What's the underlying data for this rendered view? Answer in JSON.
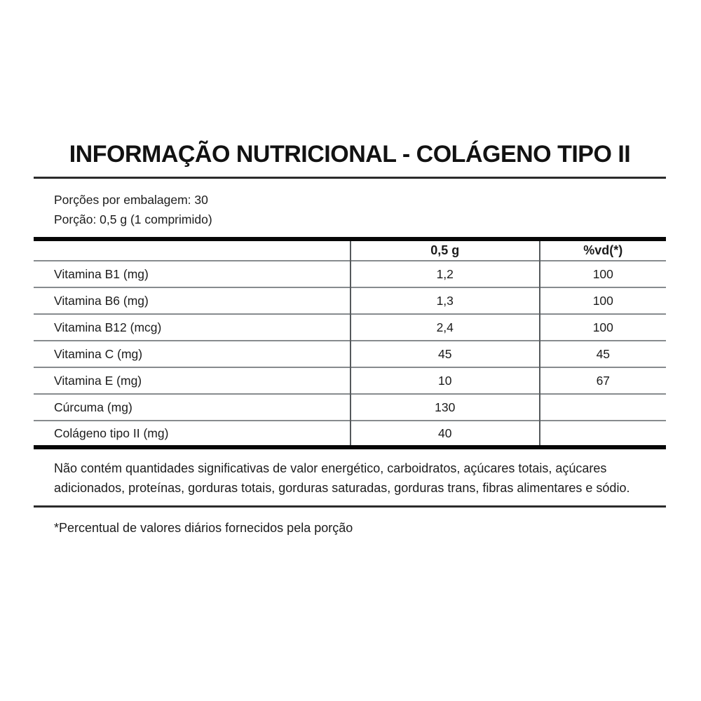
{
  "label": {
    "title": "INFORMAÇÃO NUTRICIONAL - COLÁGENO TIPO II",
    "servings_per_package": "Porções por embalagem: 30",
    "serving_size": "Porção: 0,5 g (1 comprimido)",
    "table": {
      "columns": [
        "",
        "0,5 g",
        "%vd(*)"
      ],
      "rows": [
        {
          "nutrient": "Vitamina B1 (mg)",
          "amount": "1,2",
          "dv": "100"
        },
        {
          "nutrient": "Vitamina B6 (mg)",
          "amount": "1,3",
          "dv": "100"
        },
        {
          "nutrient": "Vitamina B12 (mcg)",
          "amount": "2,4",
          "dv": "100"
        },
        {
          "nutrient": "Vitamina C (mg)",
          "amount": "45",
          "dv": "45"
        },
        {
          "nutrient": "Vitamina E (mg)",
          "amount": "10",
          "dv": "67"
        },
        {
          "nutrient": "Cúrcuma (mg)",
          "amount": "130",
          "dv": ""
        },
        {
          "nutrient": "Colágeno tipo II (mg)",
          "amount": "40",
          "dv": ""
        }
      ]
    },
    "disclaimer": "Não contém quantidades significativas de valor energético, carboidratos, açúcares totais, açúcares adicionados, proteínas, gorduras totais, gorduras saturadas, gorduras trans, fibras alimentares e sódio.",
    "footnote": "*Percentual de valores diários fornecidos pela porção"
  },
  "colors": {
    "text": "#1c1c1c",
    "thick_border": "#070707",
    "row_separator": "#878b8e",
    "column_divider": "#55595c"
  }
}
